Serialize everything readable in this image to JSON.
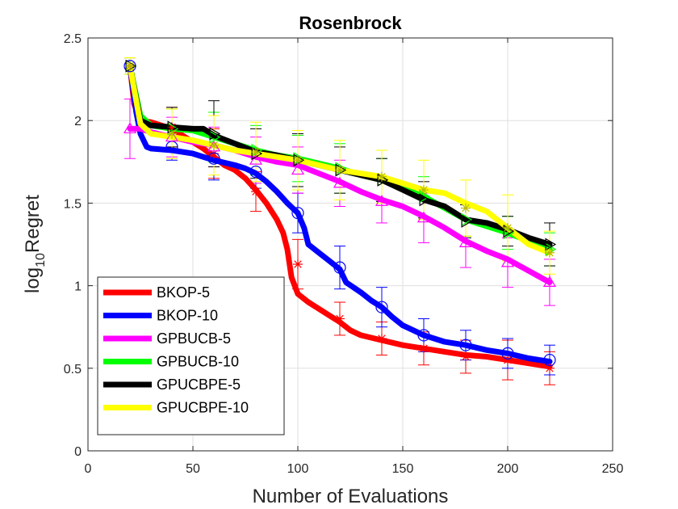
{
  "chart_data": {
    "type": "line",
    "title": "Rosenbrock",
    "xlabel": "Number of Evaluations",
    "ylabel_main": "log",
    "ylabel_sub": "10",
    "ylabel_rest": "Regret",
    "xlim": [
      0,
      250
    ],
    "ylim": [
      0,
      2.5
    ],
    "xticks": [
      0,
      50,
      100,
      150,
      200,
      250
    ],
    "yticks": [
      0,
      0.5,
      1,
      1.5,
      2,
      2.5
    ],
    "xtick_labels": [
      "0",
      "50",
      "100",
      "150",
      "200",
      "250"
    ],
    "ytick_labels": [
      "0",
      "0.5",
      "1",
      "1.5",
      "2",
      "2.5"
    ],
    "grid": true,
    "legend_location": "bottom-left",
    "series": [
      {
        "name": "BKOP-5",
        "color": "#ff0000",
        "marker": "star",
        "points": [
          [
            20,
            2.33
          ],
          [
            22,
            2.1
          ],
          [
            25,
            2.0
          ],
          [
            30,
            1.99
          ],
          [
            40,
            1.95
          ],
          [
            50,
            1.87
          ],
          [
            55,
            1.83
          ],
          [
            60,
            1.78
          ],
          [
            65,
            1.73
          ],
          [
            70,
            1.7
          ],
          [
            75,
            1.65
          ],
          [
            80,
            1.58
          ],
          [
            85,
            1.5
          ],
          [
            90,
            1.4
          ],
          [
            93,
            1.32
          ],
          [
            95,
            1.22
          ],
          [
            97,
            1.05
          ],
          [
            100,
            0.95
          ],
          [
            105,
            0.9
          ],
          [
            110,
            0.86
          ],
          [
            115,
            0.82
          ],
          [
            120,
            0.78
          ],
          [
            125,
            0.73
          ],
          [
            130,
            0.7
          ],
          [
            140,
            0.67
          ],
          [
            150,
            0.64
          ],
          [
            160,
            0.62
          ],
          [
            170,
            0.6
          ],
          [
            180,
            0.58
          ],
          [
            190,
            0.57
          ],
          [
            200,
            0.55
          ],
          [
            210,
            0.53
          ],
          [
            220,
            0.51
          ]
        ],
        "error_bars": [
          [
            20,
            2.33,
            0.05
          ],
          [
            40,
            1.96,
            0.12
          ],
          [
            60,
            1.8,
            0.15
          ],
          [
            80,
            1.57,
            0.12
          ],
          [
            100,
            1.13,
            0.15
          ],
          [
            120,
            0.8,
            0.1
          ],
          [
            140,
            0.68,
            0.1
          ],
          [
            160,
            0.62,
            0.1
          ],
          [
            180,
            0.57,
            0.1
          ],
          [
            200,
            0.55,
            0.12
          ],
          [
            220,
            0.5,
            0.1
          ]
        ]
      },
      {
        "name": "BKOP-10",
        "color": "#0000ff",
        "marker": "circle",
        "points": [
          [
            20,
            2.33
          ],
          [
            23,
            2.05
          ],
          [
            25,
            1.92
          ],
          [
            28,
            1.84
          ],
          [
            30,
            1.83
          ],
          [
            40,
            1.82
          ],
          [
            50,
            1.8
          ],
          [
            60,
            1.76
          ],
          [
            70,
            1.73
          ],
          [
            75,
            1.71
          ],
          [
            80,
            1.68
          ],
          [
            85,
            1.63
          ],
          [
            90,
            1.57
          ],
          [
            95,
            1.5
          ],
          [
            100,
            1.44
          ],
          [
            103,
            1.35
          ],
          [
            105,
            1.25
          ],
          [
            110,
            1.2
          ],
          [
            115,
            1.15
          ],
          [
            120,
            1.1
          ],
          [
            123,
            1.02
          ],
          [
            130,
            0.96
          ],
          [
            135,
            0.91
          ],
          [
            140,
            0.87
          ],
          [
            145,
            0.81
          ],
          [
            150,
            0.76
          ],
          [
            160,
            0.7
          ],
          [
            170,
            0.66
          ],
          [
            180,
            0.64
          ],
          [
            190,
            0.61
          ],
          [
            200,
            0.59
          ],
          [
            210,
            0.56
          ],
          [
            220,
            0.54
          ]
        ],
        "error_bars": [
          [
            20,
            2.33,
            0.05
          ],
          [
            40,
            1.84,
            0.08
          ],
          [
            60,
            1.77,
            0.13
          ],
          [
            80,
            1.69,
            0.1
          ],
          [
            100,
            1.44,
            0.12
          ],
          [
            120,
            1.11,
            0.13
          ],
          [
            140,
            0.87,
            0.12
          ],
          [
            160,
            0.7,
            0.1
          ],
          [
            180,
            0.64,
            0.09
          ],
          [
            200,
            0.59,
            0.09
          ],
          [
            220,
            0.55,
            0.09
          ]
        ]
      },
      {
        "name": "GPBUCB-5",
        "color": "#ff00ff",
        "marker": "triangle-up",
        "points": [
          [
            20,
            1.95
          ],
          [
            25,
            1.95
          ],
          [
            30,
            1.93
          ],
          [
            40,
            1.9
          ],
          [
            50,
            1.87
          ],
          [
            60,
            1.85
          ],
          [
            70,
            1.82
          ],
          [
            80,
            1.78
          ],
          [
            90,
            1.75
          ],
          [
            100,
            1.73
          ],
          [
            110,
            1.68
          ],
          [
            120,
            1.63
          ],
          [
            130,
            1.57
          ],
          [
            140,
            1.52
          ],
          [
            150,
            1.48
          ],
          [
            160,
            1.42
          ],
          [
            170,
            1.35
          ],
          [
            180,
            1.27
          ],
          [
            190,
            1.21
          ],
          [
            200,
            1.16
          ],
          [
            210,
            1.09
          ],
          [
            220,
            1.02
          ]
        ],
        "error_bars": [
          [
            20,
            1.95,
            0.18
          ],
          [
            40,
            1.9,
            0.12
          ],
          [
            60,
            1.84,
            0.12
          ],
          [
            80,
            1.76,
            0.14
          ],
          [
            100,
            1.7,
            0.14
          ],
          [
            120,
            1.62,
            0.14
          ],
          [
            140,
            1.51,
            0.13
          ],
          [
            160,
            1.41,
            0.15
          ],
          [
            180,
            1.26,
            0.15
          ],
          [
            200,
            1.14,
            0.15
          ],
          [
            220,
            1.02,
            0.14
          ]
        ]
      },
      {
        "name": "GPBUCB-10",
        "color": "#00ff00",
        "marker": "triangle-right",
        "points": [
          [
            20,
            2.33
          ],
          [
            25,
            2.03
          ],
          [
            30,
            1.97
          ],
          [
            40,
            1.95
          ],
          [
            50,
            1.94
          ],
          [
            60,
            1.9
          ],
          [
            70,
            1.86
          ],
          [
            80,
            1.82
          ],
          [
            90,
            1.79
          ],
          [
            100,
            1.77
          ],
          [
            110,
            1.74
          ],
          [
            120,
            1.71
          ],
          [
            130,
            1.67
          ],
          [
            140,
            1.64
          ],
          [
            150,
            1.59
          ],
          [
            160,
            1.54
          ],
          [
            170,
            1.47
          ],
          [
            180,
            1.4
          ],
          [
            190,
            1.36
          ],
          [
            200,
            1.32
          ],
          [
            210,
            1.27
          ],
          [
            220,
            1.22
          ]
        ],
        "error_bars": [
          [
            20,
            2.33,
            0.05
          ],
          [
            40,
            1.95,
            0.12
          ],
          [
            60,
            1.9,
            0.15
          ],
          [
            80,
            1.82,
            0.15
          ],
          [
            100,
            1.77,
            0.14
          ],
          [
            120,
            1.71,
            0.15
          ],
          [
            140,
            1.64,
            0.13
          ],
          [
            160,
            1.54,
            0.12
          ],
          [
            180,
            1.4,
            0.1
          ],
          [
            200,
            1.32,
            0.1
          ],
          [
            220,
            1.22,
            0.1
          ]
        ]
      },
      {
        "name": "GPUCBPE-5",
        "color": "#000000",
        "marker": "triangle-right",
        "points": [
          [
            20,
            2.33
          ],
          [
            25,
            2.0
          ],
          [
            30,
            1.97
          ],
          [
            40,
            1.96
          ],
          [
            50,
            1.95
          ],
          [
            55,
            1.95
          ],
          [
            60,
            1.91
          ],
          [
            70,
            1.86
          ],
          [
            80,
            1.81
          ],
          [
            90,
            1.79
          ],
          [
            100,
            1.76
          ],
          [
            110,
            1.73
          ],
          [
            120,
            1.7
          ],
          [
            130,
            1.67
          ],
          [
            140,
            1.64
          ],
          [
            150,
            1.58
          ],
          [
            160,
            1.52
          ],
          [
            170,
            1.48
          ],
          [
            180,
            1.4
          ],
          [
            190,
            1.38
          ],
          [
            200,
            1.34
          ],
          [
            210,
            1.29
          ],
          [
            220,
            1.25
          ]
        ],
        "error_bars": [
          [
            20,
            2.33,
            0.05
          ],
          [
            40,
            1.96,
            0.12
          ],
          [
            60,
            1.92,
            0.2
          ],
          [
            80,
            1.8,
            0.15
          ],
          [
            100,
            1.76,
            0.16
          ],
          [
            120,
            1.7,
            0.14
          ],
          [
            140,
            1.64,
            0.13
          ],
          [
            160,
            1.52,
            0.11
          ],
          [
            180,
            1.39,
            0.1
          ],
          [
            200,
            1.33,
            0.09
          ],
          [
            220,
            1.25,
            0.13
          ]
        ]
      },
      {
        "name": "GPUCBPE-10",
        "color": "#ffff00",
        "marker": "star",
        "points": [
          [
            20,
            2.33
          ],
          [
            25,
            1.98
          ],
          [
            30,
            1.92
          ],
          [
            40,
            1.9
          ],
          [
            50,
            1.88
          ],
          [
            60,
            1.85
          ],
          [
            70,
            1.82
          ],
          [
            80,
            1.8
          ],
          [
            90,
            1.78
          ],
          [
            100,
            1.76
          ],
          [
            110,
            1.73
          ],
          [
            120,
            1.7
          ],
          [
            130,
            1.68
          ],
          [
            140,
            1.66
          ],
          [
            150,
            1.62
          ],
          [
            160,
            1.58
          ],
          [
            170,
            1.56
          ],
          [
            180,
            1.5
          ],
          [
            190,
            1.45
          ],
          [
            200,
            1.35
          ],
          [
            210,
            1.25
          ],
          [
            220,
            1.2
          ]
        ],
        "error_bars": [
          [
            20,
            2.33,
            0.05
          ],
          [
            40,
            1.92,
            0.15
          ],
          [
            60,
            1.85,
            0.18
          ],
          [
            80,
            1.81,
            0.18
          ],
          [
            100,
            1.76,
            0.18
          ],
          [
            120,
            1.7,
            0.18
          ],
          [
            140,
            1.66,
            0.16
          ],
          [
            160,
            1.58,
            0.18
          ],
          [
            180,
            1.47,
            0.17
          ],
          [
            200,
            1.35,
            0.2
          ],
          [
            220,
            1.2,
            0.13
          ]
        ]
      }
    ]
  }
}
